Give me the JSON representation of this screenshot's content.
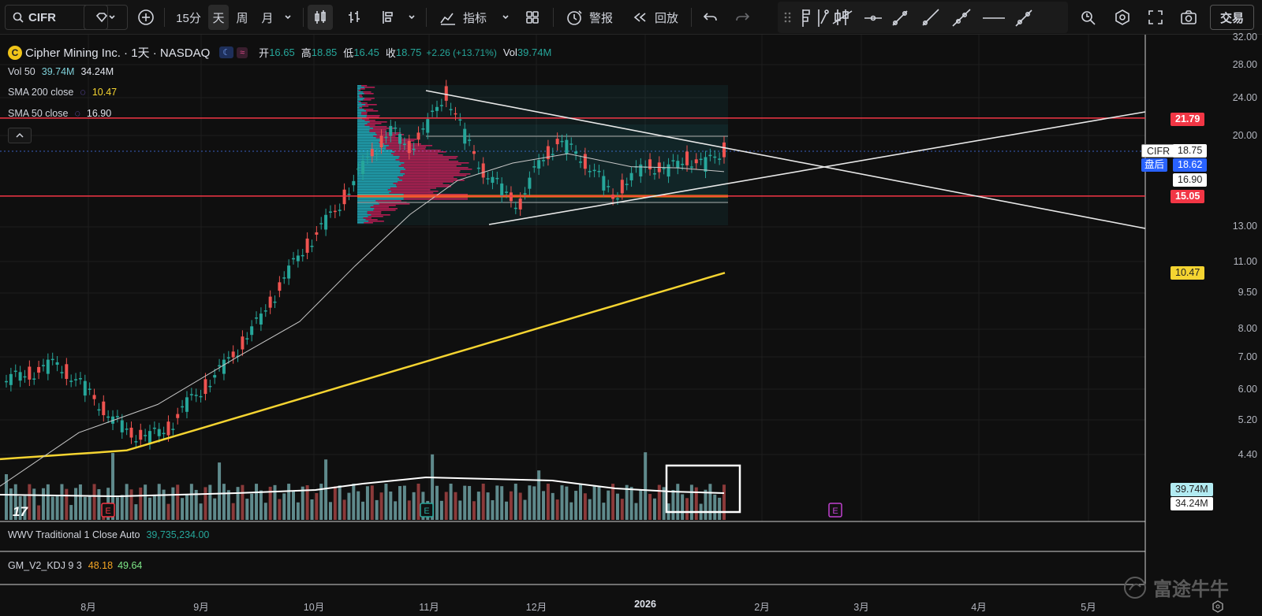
{
  "toolbar": {
    "symbol": "CIFR",
    "interval": "15分",
    "periods": [
      "天",
      "周",
      "月"
    ],
    "indicators_label": "指标",
    "alerts_label": "警报",
    "replay_label": "回放",
    "trade_label": "交易"
  },
  "legend": {
    "title": "Cipher Mining Inc. · 1天 · NASDAQ",
    "open_label": "开",
    "open": "16.65",
    "high_label": "高",
    "high": "18.85",
    "low_label": "低",
    "low": "16.45",
    "close_label": "收",
    "close": "18.75",
    "change": "+2.26 (+13.71%)",
    "vol_label": "Vol",
    "vol": "39.74M",
    "vol50_label": "Vol 50",
    "vol50_a": "39.74M",
    "vol50_b": "34.24M",
    "sma200_label": "SMA 200 close",
    "sma200": "10.47",
    "sma50_label": "SMA 50 close",
    "sma50": "16.90"
  },
  "indicators": {
    "wwv_label": "WWV Traditional 1 Close Auto",
    "wwv": "39,735,234.00",
    "kdj_label": "GM_V2_KDJ 9 3",
    "kdj_a": "48.18",
    "kdj_b": "49.64"
  },
  "price_axis": [
    "32.00",
    "28.00",
    "24.00",
    "20.00",
    "13.00",
    "11.00",
    "9.50",
    "8.00",
    "7.00",
    "6.00",
    "5.20",
    "4.40"
  ],
  "badges": {
    "res": "21.79",
    "sym": "CIFR",
    "last": "18.75",
    "post_label": "盘后",
    "post": "18.62",
    "sma50": "16.90",
    "sup": "15.05",
    "sma200": "10.47",
    "vol_a": "39.74M",
    "vol_b": "34.24M"
  },
  "time_axis": [
    "8月",
    "9月",
    "10月",
    "11月",
    "12月",
    "2026",
    "2月",
    "3月",
    "4月",
    "5月"
  ],
  "watermark": "富途牛牛",
  "colors": {
    "up": "#26a69a",
    "down": "#ef5350",
    "sma200": "#f5d431",
    "sma50": "#c8c8c8",
    "hline": "#f23645",
    "vp_up": "#26c6da",
    "vp_down": "#e91e63"
  },
  "chart_data": {
    "type": "candlestick",
    "symbol": "CIFR",
    "exchange": "NASDAQ",
    "interval": "1天",
    "ohlc": {
      "open": 16.65,
      "high": 18.85,
      "low": 16.45,
      "close": 18.75,
      "change": 2.26,
      "change_pct": 13.71
    },
    "price_scale": "log",
    "price_ticks": [
      32,
      28,
      24,
      20,
      13,
      11,
      9.5,
      8,
      7,
      6,
      5.2,
      4.4
    ],
    "closes_approx": [
      6.4,
      6.6,
      6.8,
      6.3,
      5.8,
      5.2,
      4.9,
      4.8,
      5.0,
      5.6,
      6.1,
      6.7,
      7.5,
      8.4,
      9.8,
      11.2,
      12.6,
      14.0,
      16.0,
      18.5,
      20.5,
      19.0,
      21.0,
      24.5,
      20.0,
      17.0,
      15.5,
      14.5,
      17.5,
      19.5,
      18.5,
      17.0,
      15.0,
      16.5,
      17.5,
      17.0,
      18.0,
      17.5,
      18.75
    ],
    "horizontal_lines": [
      21.79,
      15.05
    ],
    "sma200_last": 10.47,
    "sma50_last": 16.9,
    "volume_last": "39.74M",
    "volume_ma50": "34.24M"
  }
}
